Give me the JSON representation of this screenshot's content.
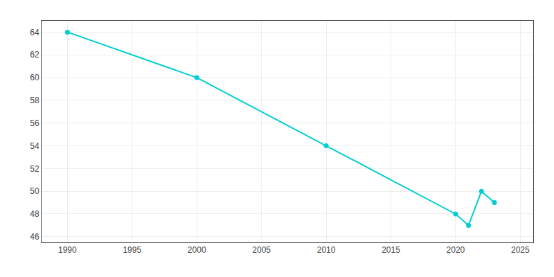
{
  "chart_data": {
    "type": "line",
    "x": [
      1990,
      2000,
      2010,
      2020,
      2021,
      2022,
      2023
    ],
    "values": [
      64,
      60,
      54,
      48,
      47,
      50,
      49
    ],
    "color": "#00CED1",
    "marker": "circle",
    "xlim": [
      1988,
      2026
    ],
    "ylim": [
      45.5,
      65
    ],
    "xticks": [
      1990,
      1995,
      2000,
      2005,
      2010,
      2015,
      2020,
      2025
    ],
    "yticks": [
      46,
      48,
      50,
      52,
      54,
      56,
      58,
      60,
      62,
      64
    ],
    "grid": true
  }
}
